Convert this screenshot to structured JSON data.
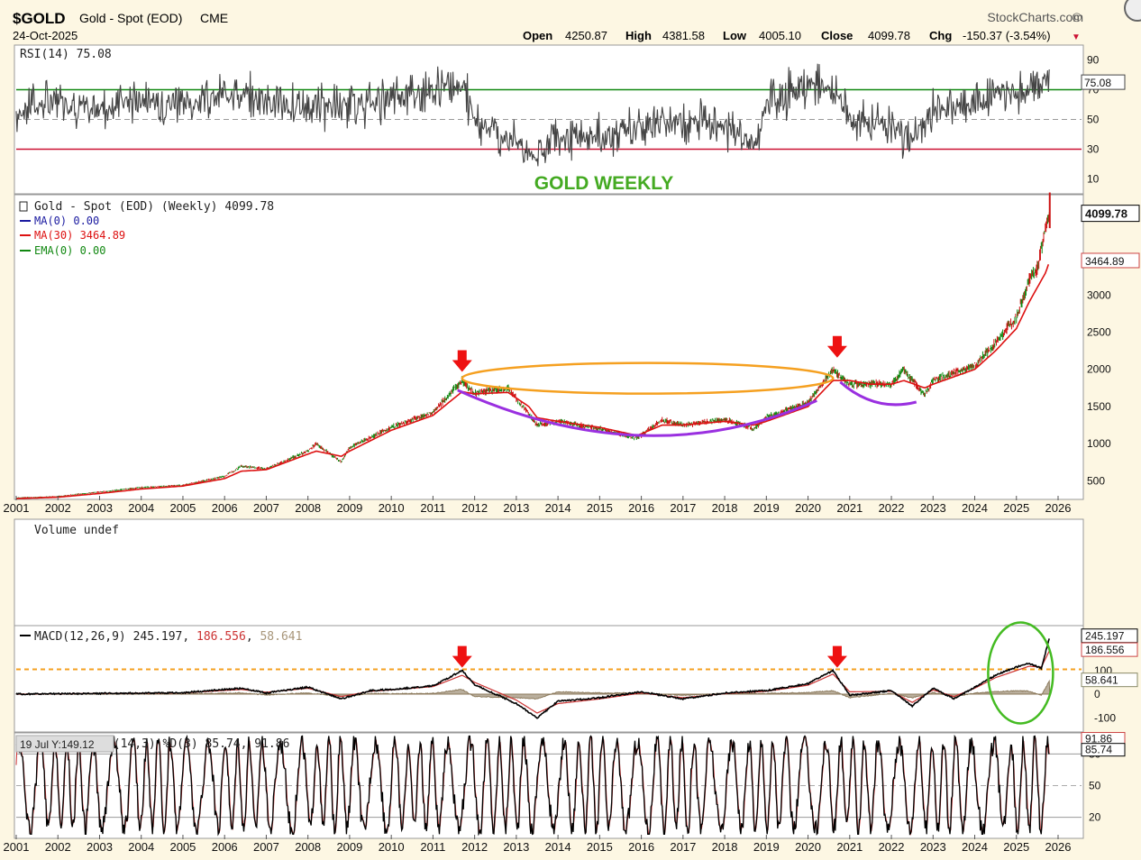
{
  "header": {
    "symbol": "$GOLD",
    "name": "Gold - Spot (EOD)",
    "exchange": "CME",
    "date": "24-Oct-2025",
    "brand": "StockCharts.com",
    "open_label": "Open",
    "open": "4250.87",
    "high_label": "High",
    "high": "4381.58",
    "low_label": "Low",
    "low": "4005.10",
    "close_label": "Close",
    "close": "4099.78",
    "chg_label": "Chg",
    "chg": "-150.37 (-3.54%)",
    "chg_arrow": "▼"
  },
  "annotation_title": "GOLD WEEKLY",
  "colors": {
    "background": "#fdf7e3",
    "panel": "#ffffff",
    "ma30": "#dd1111",
    "ma0": "#1a1aa0",
    "ema": "#118811",
    "ellipse": "#f5a020",
    "arc": "#9a30e0",
    "arrow": "#ee1111",
    "rsi_hi": "#118811",
    "rsi_lo": "#cc1133",
    "macd_ref": "#f5a020",
    "macd_circle": "#44bb22",
    "signal": "#cc3333",
    "hist": "#8c7a5c"
  },
  "chart_data": [
    {
      "type": "line",
      "name": "rsi",
      "legend": "RSI(14)",
      "legend_value": "75.08",
      "ylim": [
        0,
        100
      ],
      "yticks": [
        "90",
        "70",
        "50",
        "30",
        "10"
      ],
      "ytick_values": [
        90,
        70,
        50,
        30,
        10
      ],
      "reference_lines": [
        70,
        50,
        30
      ],
      "last_value": "75.08",
      "x": [
        2001,
        2002,
        2003,
        2004,
        2005,
        2006,
        2007,
        2008,
        2009,
        2010,
        2011,
        2011.7,
        2012,
        2013,
        2013.5,
        2014,
        2015,
        2016,
        2017,
        2018,
        2018.7,
        2019,
        2020,
        2020.7,
        2021,
        2022,
        2022.5,
        2023,
        2024,
        2025,
        2025.5,
        2025.8
      ],
      "values": [
        55,
        62,
        58,
        64,
        60,
        66,
        62,
        60,
        58,
        64,
        70,
        75,
        50,
        35,
        25,
        40,
        38,
        45,
        50,
        48,
        32,
        62,
        72,
        68,
        48,
        45,
        35,
        55,
        62,
        70,
        72,
        75.08
      ]
    },
    {
      "type": "line",
      "name": "price",
      "legend": [
        {
          "label": "Gold - Spot (EOD) (Weekly) 4099.78"
        },
        {
          "label": "MA(0) 0.00"
        },
        {
          "label": "MA(30) 3464.89"
        },
        {
          "label": "EMA(0) 0.00"
        }
      ],
      "ylim": [
        250,
        4350
      ],
      "yticks": [
        "500",
        "1000",
        "1500",
        "2000",
        "2500",
        "3000",
        "3464.89",
        "4099.78"
      ],
      "ytick_values": [
        500,
        1000,
        1500,
        2000,
        2500,
        3000
      ],
      "last_price_label": "4099.78",
      "ma_label": "3464.89",
      "x_ticks": [
        "2001",
        "2002",
        "2003",
        "2004",
        "2005",
        "2006",
        "2007",
        "2008",
        "2009",
        "2010",
        "2011",
        "2012",
        "2013",
        "2014",
        "2015",
        "2016",
        "2017",
        "2018",
        "2019",
        "2020",
        "2021",
        "2022",
        "2023",
        "2024",
        "2025",
        "2026"
      ],
      "x": [
        2001,
        2002,
        2003,
        2004,
        2005,
        2006,
        2006.4,
        2007,
        2008,
        2008.2,
        2008.8,
        2009,
        2010,
        2011,
        2011.7,
        2012,
        2012.8,
        2013.3,
        2013.5,
        2014,
        2015,
        2015.9,
        2016.5,
        2017,
        2018,
        2018.7,
        2019,
        2019.5,
        2020,
        2020.6,
        2021,
        2021.5,
        2022,
        2022.3,
        2022.8,
        2023,
        2023.5,
        2024,
        2024.5,
        2025,
        2025.3,
        2025.5,
        2025.7,
        2025.8
      ],
      "values": [
        270,
        290,
        350,
        410,
        440,
        560,
        700,
        660,
        900,
        1000,
        750,
        950,
        1220,
        1420,
        1850,
        1680,
        1750,
        1400,
        1250,
        1300,
        1200,
        1070,
        1320,
        1250,
        1330,
        1200,
        1350,
        1450,
        1550,
        2000,
        1800,
        1800,
        1800,
        2000,
        1650,
        1850,
        1950,
        2050,
        2350,
        2700,
        3200,
        3350,
        3900,
        4099.78
      ],
      "ma30_values": [
        260,
        280,
        330,
        390,
        430,
        530,
        630,
        650,
        860,
        900,
        830,
        900,
        1180,
        1380,
        1700,
        1670,
        1690,
        1500,
        1350,
        1300,
        1220,
        1110,
        1250,
        1250,
        1300,
        1250,
        1300,
        1400,
        1500,
        1850,
        1850,
        1800,
        1800,
        1850,
        1750,
        1800,
        1900,
        2000,
        2250,
        2550,
        2900,
        3100,
        3300,
        3464.89
      ]
    },
    {
      "type": "bar",
      "name": "volume",
      "legend": "Volume undef",
      "values": []
    },
    {
      "type": "line",
      "name": "macd",
      "legend": "MACD(12,26,9)",
      "macd_value": "245.197",
      "signal_value": "186.556",
      "hist_value": "58.641",
      "ylim": [
        -160,
        290
      ],
      "yticks": [
        "100",
        "0",
        "-100"
      ],
      "ytick_values": [
        100,
        0,
        -100
      ],
      "reference_line": 105,
      "x": [
        2001,
        2003,
        2005,
        2006.4,
        2007,
        2008,
        2008.8,
        2009.5,
        2010,
        2011,
        2011.7,
        2012,
        2013,
        2013.5,
        2014,
        2015,
        2016,
        2017,
        2018,
        2019,
        2020,
        2020.6,
        2021,
        2022,
        2022.5,
        2023,
        2023.5,
        2024,
        2024.5,
        2025,
        2025.3,
        2025.6,
        2025.8
      ],
      "macd": [
        0,
        3,
        6,
        25,
        5,
        30,
        -20,
        15,
        20,
        35,
        100,
        40,
        -40,
        -100,
        -30,
        -15,
        10,
        -20,
        5,
        15,
        45,
        100,
        -5,
        15,
        -50,
        25,
        -20,
        30,
        80,
        115,
        130,
        110,
        245.197
      ],
      "signal": [
        0,
        3,
        5,
        20,
        8,
        25,
        -10,
        12,
        18,
        32,
        80,
        50,
        -25,
        -80,
        -40,
        -20,
        5,
        -15,
        2,
        12,
        38,
        85,
        10,
        12,
        -35,
        18,
        -10,
        25,
        70,
        100,
        118,
        115,
        186.556
      ],
      "hist": [
        0,
        1,
        1,
        5,
        -3,
        5,
        -10,
        3,
        2,
        3,
        20,
        -10,
        -15,
        -20,
        10,
        5,
        5,
        -5,
        3,
        3,
        7,
        15,
        -15,
        3,
        -15,
        7,
        -10,
        5,
        10,
        15,
        12,
        -5,
        58.641
      ]
    },
    {
      "type": "line",
      "name": "stochastic",
      "legend": "Slow Stoch %K(14,3) %D(3) 85.74, 91.86",
      "k_value": "85.74",
      "d_value": "91.86",
      "legend_value_d_label": "91.86",
      "tooltip": "19 Jul Y:149.12",
      "ylim": [
        0,
        100
      ],
      "yticks": [
        "80",
        "50",
        "20"
      ],
      "ytick_values": [
        80,
        50,
        20
      ],
      "last_values": [
        "91.86",
        "85.74"
      ],
      "x_ticks": [
        "2001",
        "2002",
        "2003",
        "2004",
        "2005",
        "2006",
        "2007",
        "2008",
        "2009",
        "2010",
        "2011",
        "2012",
        "2013",
        "2014",
        "2015",
        "2016",
        "2017",
        "2018",
        "2019",
        "2020",
        "2021",
        "2022",
        "2023",
        "2024",
        "2025",
        "2026"
      ]
    }
  ]
}
